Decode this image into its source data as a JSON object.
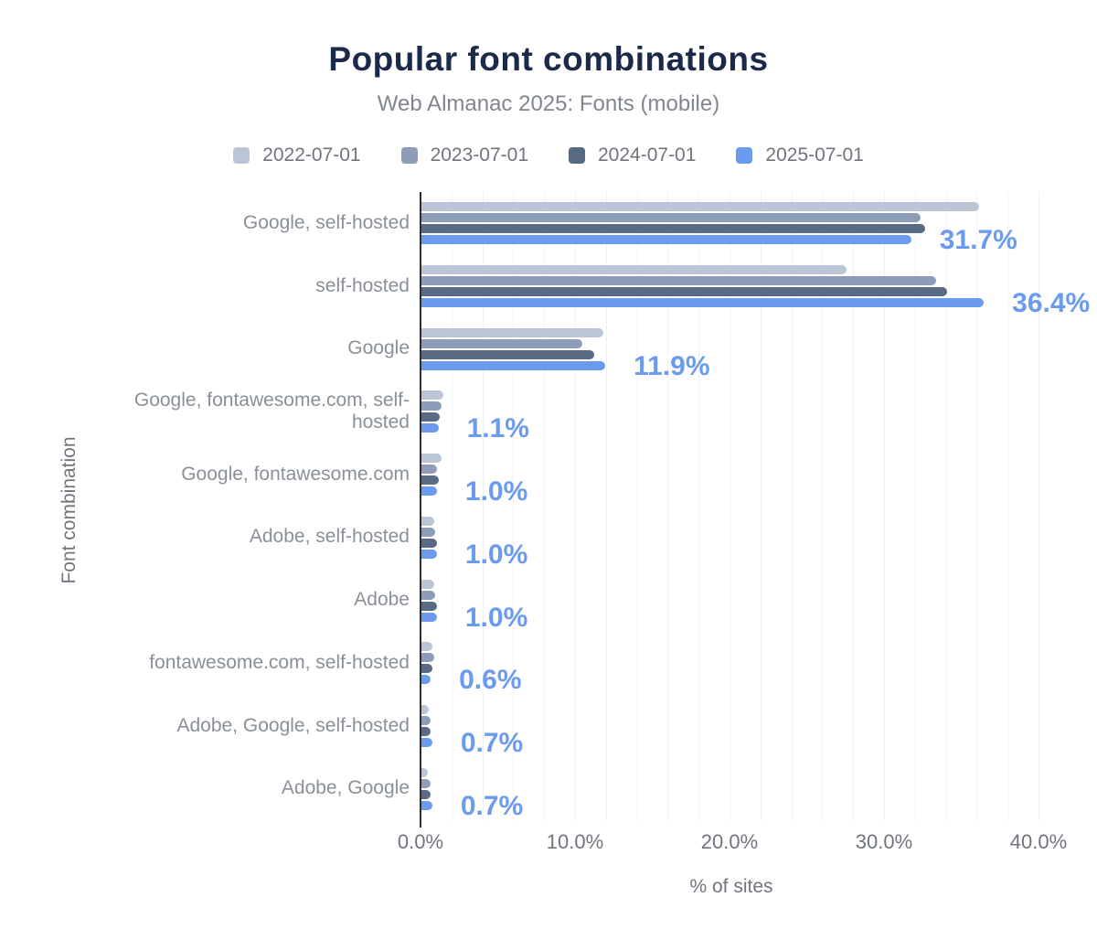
{
  "title": "Popular font combinations",
  "subtitle": "Web Almanac 2025: Fonts (mobile)",
  "colors": {
    "title": "#1b294a",
    "subtitle": "#81868e",
    "axis_text": "#70757d",
    "category_text": "#8a9098",
    "value_label": "#6a9bef",
    "axis_line": "#2e2e2e",
    "gridline": "#f0f1f5",
    "background": "#ffffff"
  },
  "legend": {
    "items": [
      {
        "label": "2022-07-01",
        "color": "#bac5d6"
      },
      {
        "label": "2023-07-01",
        "color": "#8d9cb8"
      },
      {
        "label": "2024-07-01",
        "color": "#596a84"
      },
      {
        "label": "2025-07-01",
        "color": "#6a9bef"
      }
    ]
  },
  "chart_data": {
    "type": "bar",
    "orientation": "horizontal",
    "title": "Popular font combinations",
    "subtitle": "Web Almanac 2025: Fonts (mobile)",
    "xlabel": "% of sites",
    "ylabel": "Font combination",
    "xlim": [
      0,
      40
    ],
    "grid": "vertical, every 2%",
    "legend_position": "top",
    "x_tick_values": [
      0,
      10,
      20,
      30,
      40
    ],
    "x_tick_labels": [
      "0.0%",
      "10.0%",
      "20.0%",
      "30.0%",
      "40.0%"
    ],
    "categories": [
      "Google, self-hosted",
      "self-hosted",
      "Google",
      "Google, fontawesome.com, self-hosted",
      "Google, fontawesome.com",
      "Adobe, self-hosted",
      "Adobe",
      "fontawesome.com, self-hosted",
      "Adobe, Google, self-hosted",
      "Adobe, Google"
    ],
    "series": [
      {
        "name": "2022-07-01",
        "color": "#bac5d6",
        "values": [
          36.1,
          27.5,
          11.8,
          1.4,
          1.3,
          0.8,
          0.8,
          0.7,
          0.5,
          0.4
        ]
      },
      {
        "name": "2023-07-01",
        "color": "#8d9cb8",
        "values": [
          32.3,
          33.3,
          10.4,
          1.3,
          1.0,
          0.9,
          0.9,
          0.8,
          0.6,
          0.6
        ]
      },
      {
        "name": "2024-07-01",
        "color": "#596a84",
        "values": [
          32.6,
          34.0,
          11.2,
          1.2,
          1.1,
          1.0,
          1.0,
          0.7,
          0.6,
          0.6
        ]
      },
      {
        "name": "2025-07-01",
        "color": "#6a9bef",
        "values": [
          31.7,
          36.4,
          11.9,
          1.1,
          1.0,
          1.0,
          1.0,
          0.6,
          0.7,
          0.7
        ]
      }
    ],
    "value_labels": [
      "31.7%",
      "36.4%",
      "11.9%",
      "1.1%",
      "1.0%",
      "1.0%",
      "1.0%",
      "0.6%",
      "0.7%",
      "0.7%"
    ],
    "value_labels_series": "2025-07-01"
  }
}
